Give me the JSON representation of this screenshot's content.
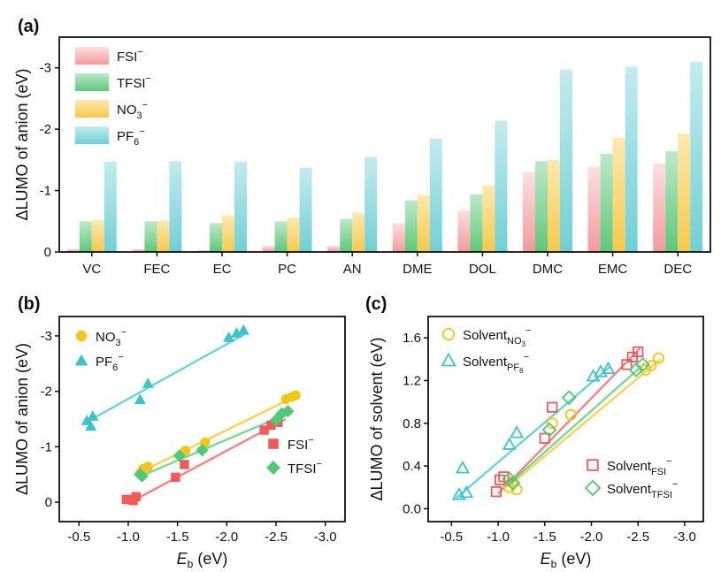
{
  "chart_data": [
    {
      "panel": "(a)",
      "type": "bar",
      "xlabel": "",
      "ylabel": "ΔLUMO of anion (eV)",
      "ylim": [
        0,
        -3.5
      ],
      "yticks": [
        0,
        -1,
        -2,
        -3
      ],
      "ytick_labels": [
        "0",
        "-1",
        "-2",
        "-3"
      ],
      "categories": [
        "VC",
        "FEC",
        "EC",
        "PC",
        "AN",
        "DME",
        "DOL",
        "DMC",
        "EMC",
        "DEC"
      ],
      "legend_position": "top-left",
      "series": [
        {
          "name": "FSI⁻",
          "label_main": "FSI",
          "sup": "−",
          "sub": "",
          "color": "#f39a9a",
          "color_top": "#fde0e0",
          "values": [
            -0.05,
            -0.05,
            -0.03,
            -0.1,
            -0.1,
            -0.47,
            -0.68,
            -1.3,
            -1.39,
            -1.44
          ]
        },
        {
          "name": "TFSI⁻",
          "label_main": "TFSI",
          "sup": "−",
          "sub": "",
          "color": "#5cc87a",
          "color_top": "#bde9c8",
          "values": [
            -0.5,
            -0.5,
            -0.47,
            -0.5,
            -0.54,
            -0.84,
            -0.94,
            -1.48,
            -1.6,
            -1.64
          ]
        },
        {
          "name": "NO3⁻",
          "label_main": "NO",
          "sup": "−",
          "sub": "3",
          "color": "#f7c84a",
          "color_top": "#fdeab0",
          "values": [
            -0.52,
            -0.51,
            -0.6,
            -0.56,
            -0.64,
            -0.93,
            -1.08,
            -1.5,
            -1.86,
            -1.93
          ]
        },
        {
          "name": "PF6⁻",
          "label_main": "PF",
          "sup": "−",
          "sub": "6",
          "color": "#6fd0d6",
          "color_top": "#c3ecee",
          "values": [
            -1.47,
            -1.48,
            -1.47,
            -1.37,
            -1.55,
            -1.85,
            -2.14,
            -2.97,
            -3.02,
            -3.1
          ]
        }
      ]
    },
    {
      "panel": "(b)",
      "type": "scatter",
      "xlabel_main": "E",
      "xlabel_sub": "b",
      "xlabel_unit": " (eV)",
      "ylabel": "ΔLUMO of anion (eV)",
      "xlim": [
        -0.3,
        -3.2
      ],
      "xticks": [
        -0.5,
        -1.0,
        -1.5,
        -2.0,
        -2.5,
        -3.0
      ],
      "xtick_labels": [
        "-0.5",
        "-1.0",
        "-1.5",
        "-2.0",
        "-2.5",
        "-3.0"
      ],
      "ylim": [
        0.35,
        -3.35
      ],
      "yticks": [
        0,
        -1,
        -2,
        -3
      ],
      "ytick_labels": [
        "0",
        "-1",
        "-2",
        "-3"
      ],
      "series": [
        {
          "name": "NO3⁻",
          "label_main": "NO",
          "sup": "−",
          "sub": "3",
          "marker": "circle",
          "color": "#f5c518",
          "x": [
            -1.12,
            -1.15,
            -1.2,
            -1.58,
            -1.78,
            -2.6,
            -2.66,
            -2.7
          ],
          "y": [
            -0.52,
            -0.6,
            -0.64,
            -0.93,
            -1.08,
            -1.86,
            -1.9,
            -1.93
          ],
          "fit": [
            [
              -1.1,
              -0.52
            ],
            [
              -2.72,
              -1.93
            ]
          ]
        },
        {
          "name": "PF6⁻",
          "label_main": "PF",
          "sup": "−",
          "sub": "6",
          "marker": "triangle",
          "color": "#3cc3cc",
          "x": [
            -0.58,
            -0.62,
            -0.64,
            -1.12,
            -1.2,
            -2.02,
            -2.1,
            -2.17
          ],
          "y": [
            -1.47,
            -1.37,
            -1.55,
            -1.85,
            -2.14,
            -2.97,
            -3.05,
            -3.1
          ],
          "fit": [
            [
              -0.55,
              -1.42
            ],
            [
              -2.2,
              -3.05
            ]
          ]
        },
        {
          "name": "FSI⁻",
          "label_main": "FSI",
          "sup": "−",
          "sub": "",
          "marker": "square",
          "color": "#f05a5a",
          "x": [
            -0.98,
            -1.02,
            -1.05,
            -1.08,
            -1.48,
            -1.57,
            -2.38,
            -2.45,
            -2.52
          ],
          "y": [
            -0.05,
            -0.05,
            -0.03,
            -0.1,
            -0.45,
            -0.68,
            -1.3,
            -1.39,
            -1.44
          ],
          "fit": [
            [
              -1.0,
              0.02
            ],
            [
              -2.6,
              -1.5
            ]
          ]
        },
        {
          "name": "TFSI⁻",
          "label_main": "TFSI",
          "sup": "−",
          "sub": "",
          "marker": "diamond",
          "color": "#50c878",
          "x": [
            -1.12,
            -1.14,
            -1.52,
            -1.75,
            -2.5,
            -2.56,
            -2.62
          ],
          "y": [
            -0.5,
            -0.47,
            -0.84,
            -0.94,
            -1.48,
            -1.6,
            -1.64
          ],
          "fit": [
            [
              -1.1,
              -0.45
            ],
            [
              -2.65,
              -1.62
            ]
          ]
        }
      ]
    },
    {
      "panel": "(c)",
      "type": "scatter",
      "xlabel_main": "E",
      "xlabel_sub": "b",
      "xlabel_unit": " (eV)",
      "ylabel": "ΔLUMO of solvent (eV)",
      "xlim": [
        -0.25,
        -3.2
      ],
      "xticks": [
        -0.5,
        -1.0,
        -1.5,
        -2.0,
        -2.5,
        -3.0
      ],
      "xtick_labels": [
        "-0.5",
        "-1.0",
        "-1.5",
        "-2.0",
        "-2.5",
        "-3.0"
      ],
      "ylim": [
        -0.12,
        1.8
      ],
      "yticks": [
        0.0,
        0.4,
        0.8,
        1.2,
        1.6
      ],
      "ytick_labels": [
        "0.0",
        "0.4",
        "0.8",
        "1.2",
        "1.6"
      ],
      "series": [
        {
          "name": "SolventNO3⁻",
          "label_main": "Solvent",
          "sub": "NO",
          "sub2": "3",
          "sup": "−",
          "marker": "circle",
          "color": "#f5c518",
          "x": [
            -1.12,
            -1.15,
            -1.2,
            -1.58,
            -1.78,
            -2.58,
            -2.64,
            -2.72
          ],
          "y": [
            0.2,
            0.25,
            0.18,
            0.8,
            0.88,
            1.3,
            1.34,
            1.41
          ],
          "fit": [
            [
              -1.1,
              0.2
            ],
            [
              -2.74,
              1.4
            ]
          ]
        },
        {
          "name": "SolventPF6⁻",
          "label_main": "Solvent",
          "sub": "PF",
          "sub2": "6",
          "sup": "−",
          "marker": "triangle",
          "color": "#3cc3cc",
          "x": [
            -0.58,
            -0.62,
            -0.66,
            -1.12,
            -1.2,
            -2.02,
            -2.1,
            -2.18
          ],
          "y": [
            0.13,
            0.38,
            0.15,
            0.6,
            0.71,
            1.24,
            1.28,
            1.31
          ],
          "fit": [
            [
              -0.55,
              0.1
            ],
            [
              -2.2,
              1.33
            ]
          ]
        },
        {
          "name": "SolventFSI⁻",
          "label_main": "Solvent",
          "sub": "FSI",
          "sub2": "",
          "sup": "−",
          "marker": "square",
          "color": "#f05a5a",
          "x": [
            -0.98,
            -1.02,
            -1.06,
            -1.5,
            -1.58,
            -2.38,
            -2.44,
            -2.5
          ],
          "y": [
            0.16,
            0.27,
            0.3,
            0.66,
            0.95,
            1.35,
            1.42,
            1.47
          ],
          "fit": [
            [
              -1.0,
              0.14
            ],
            [
              -2.52,
              1.5
            ]
          ]
        },
        {
          "name": "SolventTFSI⁻",
          "label_main": "Solvent",
          "sub": "TFSI",
          "sub2": "",
          "sup": "−",
          "marker": "diamond",
          "color": "#50c878",
          "x": [
            -1.12,
            -1.16,
            -1.55,
            -1.76,
            -2.48,
            -2.55
          ],
          "y": [
            0.28,
            0.24,
            0.74,
            1.04,
            1.3,
            1.35
          ],
          "fit": [
            [
              -1.1,
              0.22
            ],
            [
              -2.57,
              1.36
            ]
          ]
        }
      ]
    }
  ]
}
